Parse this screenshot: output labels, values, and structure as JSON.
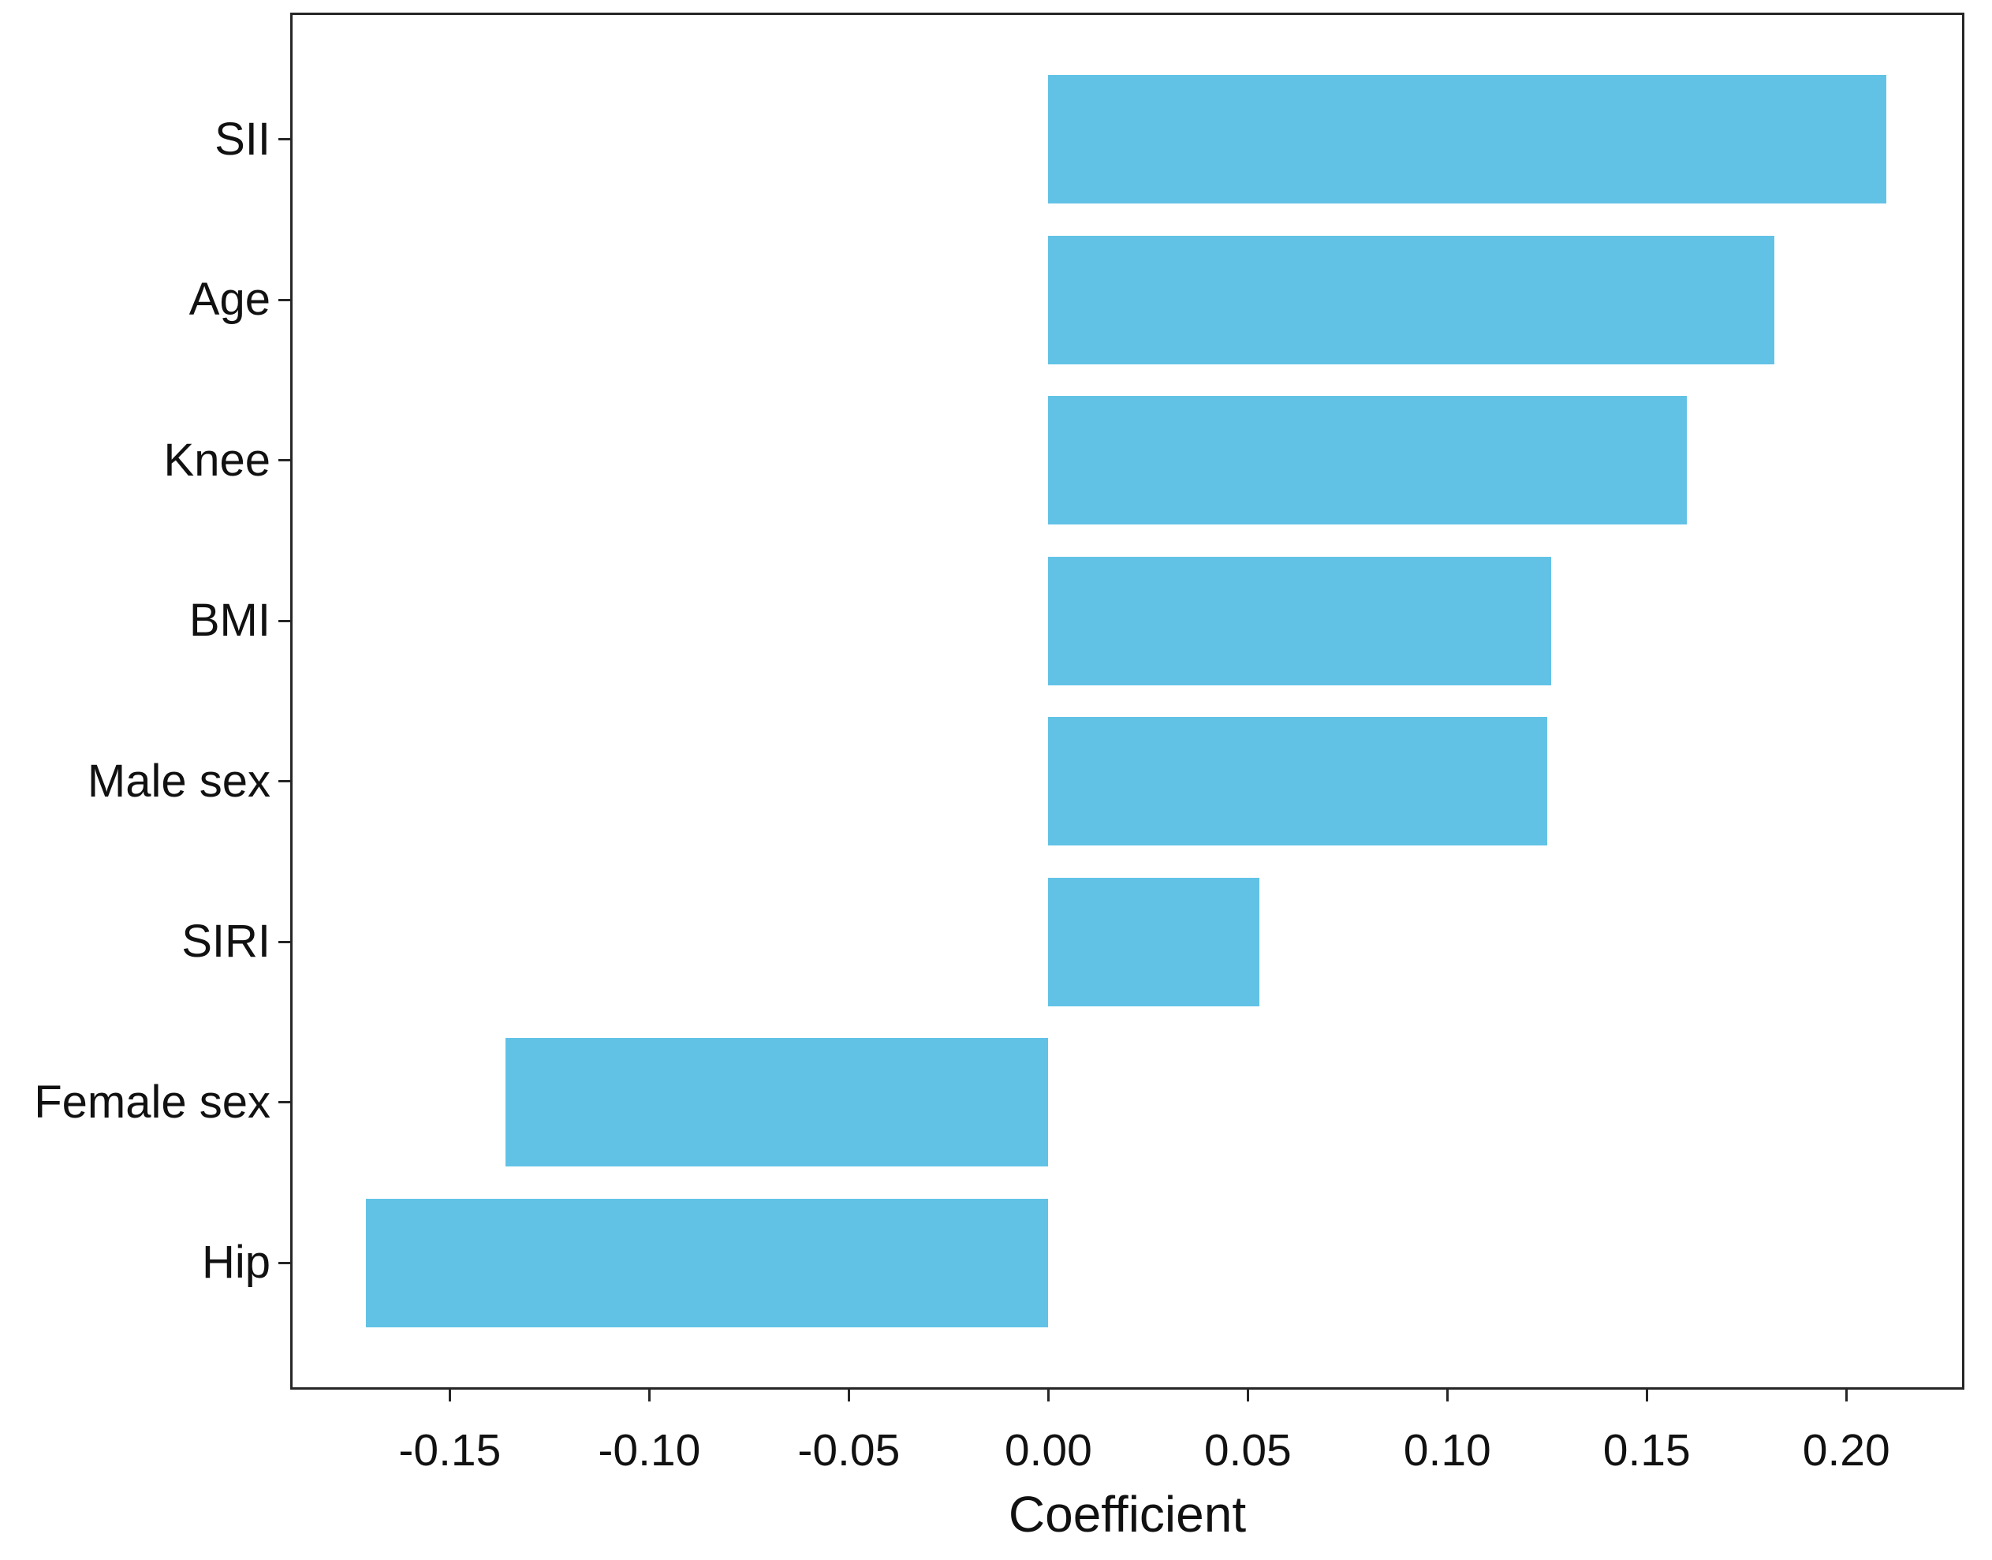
{
  "chart_data": {
    "type": "bar",
    "orientation": "horizontal",
    "title": "",
    "xlabel": "Coefficient",
    "ylabel": "",
    "categories": [
      "SII",
      "Age",
      "Knee",
      "BMI",
      "Male sex",
      "SIRI",
      "Female sex",
      "Hip"
    ],
    "values": [
      0.21,
      0.182,
      0.16,
      0.126,
      0.125,
      0.053,
      -0.136,
      -0.171
    ],
    "xlim": [
      -0.19,
      0.2296
    ],
    "xticks": [
      -0.15,
      -0.1,
      -0.05,
      0.0,
      0.05,
      0.1,
      0.15,
      0.2
    ],
    "xtick_labels": [
      "-0.15",
      "-0.10",
      "-0.05",
      "0.00",
      "0.05",
      "0.10",
      "0.15",
      "0.20"
    ],
    "grid": false,
    "legend_position": "none",
    "bar_height_fraction": 0.8
  },
  "colors": {
    "bar": "#62c2e6",
    "axis": "#262626",
    "text": "#111111",
    "background": "#ffffff"
  }
}
